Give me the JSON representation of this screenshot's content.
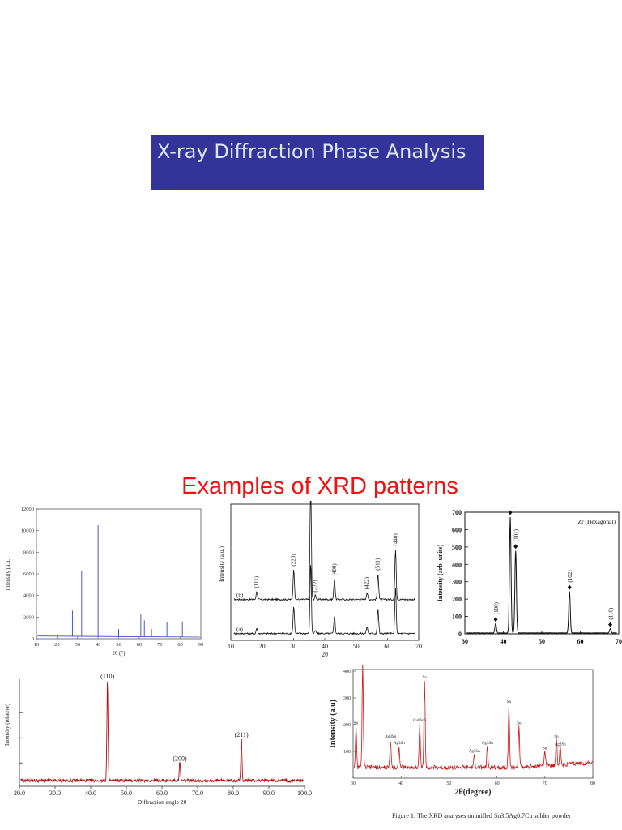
{
  "slide": {
    "title": "X-ray Diffraction Phase Analysis",
    "subtitle": "Examples of XRD patterns"
  },
  "colors": {
    "title_bg": "#333399",
    "title_text": "#dce6f8",
    "subtitle": "#ee1111"
  },
  "chart_data": [
    {
      "type": "line",
      "title": "",
      "xlabel": "2θ (°)",
      "ylabel": "Intensity (a.u.)",
      "xlim": [
        10,
        90
      ],
      "ylim": [
        0,
        12000
      ],
      "xticks": [
        10,
        20,
        30,
        40,
        50,
        60,
        70,
        80,
        90
      ],
      "yticks": [
        0,
        2000,
        4000,
        6000,
        8000,
        10000,
        12000
      ],
      "color": "#3344cc",
      "peaks": [
        {
          "x": 27.5,
          "y": 2600
        },
        {
          "x": 32.0,
          "y": 6300
        },
        {
          "x": 40.0,
          "y": 10500
        },
        {
          "x": 50.0,
          "y": 900
        },
        {
          "x": 57.5,
          "y": 2100
        },
        {
          "x": 60.8,
          "y": 2300
        },
        {
          "x": 62.5,
          "y": 1700
        },
        {
          "x": 66.0,
          "y": 900
        },
        {
          "x": 73.5,
          "y": 1500
        },
        {
          "x": 81.0,
          "y": 1600
        }
      ]
    },
    {
      "type": "line",
      "title": "",
      "xlabel": "2θ",
      "ylabel": "Intensity (a.u.)",
      "xlim": [
        10,
        70
      ],
      "xticks": [
        10,
        20,
        30,
        40,
        50,
        60,
        70
      ],
      "series": [
        {
          "name": "(b)",
          "baseline": 0.3,
          "peaks": [
            {
              "x": 18.3,
              "y": 0.06
            },
            {
              "x": 30.1,
              "y": 0.22
            },
            {
              "x": 35.5,
              "y": 0.84
            },
            {
              "x": 37.0,
              "y": 0.03
            },
            {
              "x": 43.1,
              "y": 0.15
            },
            {
              "x": 53.5,
              "y": 0.05
            },
            {
              "x": 57.0,
              "y": 0.19
            },
            {
              "x": 62.6,
              "y": 0.37
            }
          ]
        },
        {
          "name": "(a)",
          "baseline": 0.05,
          "peaks": [
            {
              "x": 18.3,
              "y": 0.04
            },
            {
              "x": 30.1,
              "y": 0.2
            },
            {
              "x": 35.5,
              "y": 0.52
            },
            {
              "x": 37.0,
              "y": 0.02
            },
            {
              "x": 43.1,
              "y": 0.13
            },
            {
              "x": 53.5,
              "y": 0.05
            },
            {
              "x": 57.0,
              "y": 0.18
            },
            {
              "x": 62.6,
              "y": 0.34
            }
          ]
        }
      ],
      "annotations": [
        {
          "text": "(111)",
          "x": 18.3
        },
        {
          "text": "(220)",
          "x": 30.1
        },
        {
          "text": "(311)",
          "x": 35.5
        },
        {
          "text": "(222)",
          "x": 37.0
        },
        {
          "text": "(400)",
          "x": 43.1
        },
        {
          "text": "(422)",
          "x": 53.5
        },
        {
          "text": "(511)",
          "x": 57.0
        },
        {
          "text": "(440)",
          "x": 62.6
        }
      ]
    },
    {
      "type": "line",
      "title": "Zr (Hexagonal)",
      "xlabel": "",
      "ylabel": "Intensity (arb. units)",
      "xlim": [
        30,
        70
      ],
      "ylim": [
        0,
        700
      ],
      "xticks": [
        30,
        40,
        50,
        60,
        70
      ],
      "yticks": [
        0,
        100,
        200,
        300,
        400,
        500,
        600,
        700
      ],
      "peaks": [
        {
          "x": 38.0,
          "y": 55,
          "label": "(100)"
        },
        {
          "x": 41.8,
          "y": 670,
          "label": "(002)"
        },
        {
          "x": 43.2,
          "y": 475,
          "label": "(101)"
        },
        {
          "x": 57.2,
          "y": 240,
          "label": "(102)"
        },
        {
          "x": 67.8,
          "y": 25,
          "label": "(110)"
        }
      ]
    },
    {
      "type": "line",
      "title": "",
      "xlabel": "Diffraction angle 2θ",
      "ylabel": "Intensity (relative)",
      "xlim": [
        20,
        100
      ],
      "xticks": [
        "20.0",
        "30.0",
        "40.0",
        "50.0",
        "60.0",
        "70.0",
        "80.0",
        "90.0",
        "100.0"
      ],
      "color": "#aa1111",
      "peaks": [
        {
          "x": 44.7,
          "y": 1.0,
          "label": "(110)"
        },
        {
          "x": 65.0,
          "y": 0.18,
          "label": "(200)"
        },
        {
          "x": 82.3,
          "y": 0.42,
          "label": "(211)"
        }
      ]
    },
    {
      "type": "line",
      "title": "",
      "xlabel": "2θ(degree)",
      "ylabel": "Intensity (a.u)",
      "xlim": [
        30,
        80
      ],
      "ylim": [
        0,
        400
      ],
      "xticks": [
        30,
        40,
        50,
        60,
        70,
        80
      ],
      "yticks": [
        100,
        200,
        300,
        400
      ],
      "color": "#cc1111",
      "caption": "Figure 1: The XRD analyses on milled Sn3.5Ag0.7Cu solder powder",
      "peaks": [
        {
          "x": 30.6,
          "y": 150,
          "label": "Sn"
        },
        {
          "x": 32.0,
          "y": 390,
          "label": "Sn"
        },
        {
          "x": 37.8,
          "y": 100,
          "label": "Ag3Sn"
        },
        {
          "x": 39.6,
          "y": 75,
          "label": "Ag3Sn"
        },
        {
          "x": 43.9,
          "y": 160,
          "label": "Cu6Sn5"
        },
        {
          "x": 44.9,
          "y": 320,
          "label": "Sn"
        },
        {
          "x": 55.3,
          "y": 45,
          "label": "Ag3Sn"
        },
        {
          "x": 58.0,
          "y": 75,
          "label": "Ag3Sn"
        },
        {
          "x": 62.5,
          "y": 230,
          "label": "Sn"
        },
        {
          "x": 64.6,
          "y": 150,
          "label": "Sn"
        },
        {
          "x": 70.0,
          "y": 55,
          "label": "Sn"
        },
        {
          "x": 72.4,
          "y": 100,
          "label": "Sn"
        },
        {
          "x": 73.2,
          "y": 70,
          "label": "Ag3Sn"
        }
      ]
    }
  ]
}
